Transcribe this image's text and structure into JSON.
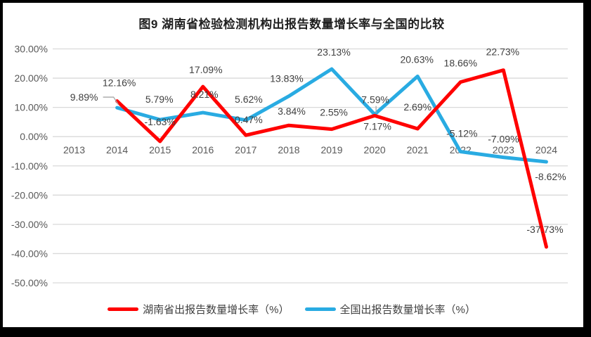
{
  "chart_data": {
    "type": "line",
    "title": "图9 湖南省检验检测机构出报告数量增长率与全国的比较",
    "categories": [
      "2013",
      "2014",
      "2015",
      "2016",
      "2017",
      "2018",
      "2019",
      "2020",
      "2021",
      "2022",
      "2023",
      "2024"
    ],
    "y_axis": {
      "tick_labels": [
        "30.00%",
        "20.00%",
        "10.00%",
        "0.00%",
        "-10.00%",
        "-20.00%",
        "-30.00%",
        "-40.00%",
        "-50.00%"
      ],
      "tick_values": [
        30,
        20,
        10,
        0,
        -10,
        -20,
        -30,
        -40,
        -50
      ],
      "range": [
        -50,
        30
      ]
    },
    "grid": true,
    "legend_position": "bottom",
    "series": [
      {
        "name": "湖南省出报告数量增长率（%）",
        "color": "#FF0000",
        "values": [
          null,
          12.16,
          -1.63,
          17.09,
          0.47,
          3.84,
          2.55,
          7.17,
          2.69,
          18.66,
          22.73,
          -37.73
        ],
        "data_labels": [
          null,
          "12.16%",
          "-1.63%",
          "17.09%",
          "0.47%",
          "3.84%",
          "2.55%",
          "7.17%",
          "2.69%",
          "18.66%",
          "22.73%",
          "-37.73%"
        ]
      },
      {
        "name": "全国出报告数量增长率（%）",
        "color": "#29ABE2",
        "values": [
          null,
          9.89,
          5.79,
          8.21,
          5.62,
          13.83,
          23.13,
          7.59,
          20.63,
          -5.12,
          -7.09,
          -8.62
        ],
        "data_labels": [
          null,
          "9.89%",
          "5.79%",
          "8.21%",
          "5.62%",
          "13.83%",
          "23.13%",
          "7.59%",
          "20.63%",
          "-5.12%",
          "-7.09%",
          "-8.62%"
        ]
      }
    ],
    "colors": {
      "grid": "#D9D9D9",
      "axis_text": "#595959",
      "label_text": "#404040",
      "leader": "#A6A6A6",
      "frame": "#000000"
    },
    "layout_hints": {
      "label_offsets": [
        [
          null,
          [
            3,
            -26
          ],
          [
            0,
            -28
          ],
          [
            4,
            -24
          ],
          [
            4,
            -22
          ],
          [
            4,
            -20
          ],
          [
            3,
            -24
          ],
          [
            4,
            15
          ],
          [
            0,
            -31
          ],
          [
            0,
            -27
          ],
          [
            -1,
            -26
          ],
          [
            -2,
            -25
          ]
        ],
        [
          null,
          [
            -47,
            -15
          ],
          [
            -1,
            -29
          ],
          [
            2,
            -26
          ],
          [
            4,
            -30
          ],
          [
            -3,
            -25
          ],
          [
            3,
            -24
          ],
          [
            1,
            -21
          ],
          [
            -1,
            -24
          ],
          [
            2,
            -26
          ],
          [
            0,
            -26
          ],
          [
            6,
            21
          ]
        ]
      ],
      "leaders": [
        {
          "series": 1,
          "index": 1,
          "type": "bent"
        },
        {
          "series": 1,
          "index": 7,
          "type": "tick"
        }
      ]
    }
  }
}
